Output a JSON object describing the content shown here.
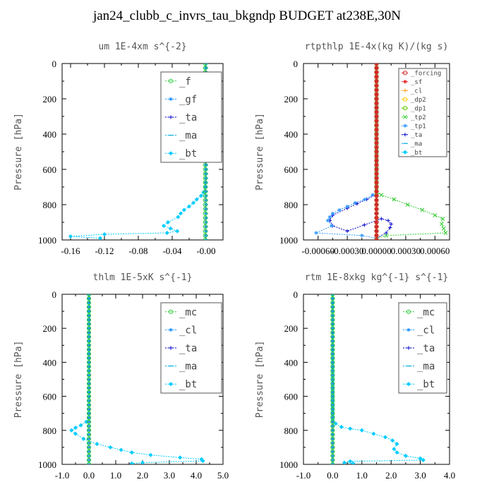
{
  "figure": {
    "title": "jan24_clubb_c_invrs_tau_bkgndp  BUDGET at238E,30N"
  },
  "chart_data": [
    {
      "type": "line",
      "title": "um  1E-4xm s^{-2}",
      "ylabel": "Pressure [hPa]",
      "xlim": [
        -0.17,
        0.02
      ],
      "ylim": [
        1000,
        0
      ],
      "y_inverted": true,
      "xticks": [
        "-0.16",
        "-0.12",
        "-0.08",
        "-0.04",
        "-0.00"
      ],
      "xtick_values": [
        -0.16,
        -0.12,
        -0.08,
        -0.04,
        0.0
      ],
      "yticks": [
        "0",
        "200",
        "400",
        "600",
        "800",
        "1000"
      ],
      "legend": "top-right",
      "legend_size": "big",
      "series": [
        {
          "name": "_f",
          "color": "#2ecc40",
          "marker": "circle",
          "x": [
            -0.001,
            -0.001
          ],
          "y": [
            0,
            1000
          ]
        },
        {
          "name": "_gf",
          "color": "#1e90ff",
          "marker": "star",
          "x": [
            0.0,
            0.0
          ],
          "y": [
            0,
            1000
          ]
        },
        {
          "name": "_ta",
          "color": "#0000cc",
          "marker": "plus",
          "x": [
            0.0,
            0.0
          ],
          "y": [
            0,
            1000
          ]
        },
        {
          "name": "_ma",
          "color": "#00aadd",
          "marker": "dash",
          "x": [
            0.0,
            0.0
          ],
          "y": [
            0,
            1000
          ]
        },
        {
          "name": "_bt",
          "color": "#00ccff",
          "marker": "diamond",
          "x": [
            -0.0,
            -0.0,
            -0.001,
            -0.003,
            -0.006,
            -0.011,
            -0.015,
            -0.02,
            -0.026,
            -0.03,
            -0.033,
            -0.045,
            -0.05,
            -0.042,
            -0.034,
            -0.046,
            -0.12,
            -0.16,
            -0.125
          ],
          "y": [
            0,
            650,
            700,
            730,
            750,
            770,
            790,
            810,
            830,
            850,
            870,
            900,
            920,
            935,
            950,
            960,
            968,
            980,
            990
          ]
        }
      ]
    },
    {
      "type": "line",
      "title": "rtpthlp  1E-4x(kg K)/(kg s)",
      "ylabel": "Pressure [hPa]",
      "xlim": [
        -0.00075,
        0.00075
      ],
      "ylim": [
        1000,
        0
      ],
      "y_inverted": true,
      "xticks": [
        "-0.00060",
        "-0.00030",
        "0.00000",
        "0.00030",
        "0.00060"
      ],
      "xtick_values": [
        -0.0006,
        -0.0003,
        0.0,
        0.0003,
        0.0006
      ],
      "yticks": [
        "0",
        "200",
        "400",
        "600",
        "800",
        "1000"
      ],
      "legend": "top-right",
      "legend_size": "small",
      "series": [
        {
          "name": "_forcing",
          "color": "#d62728",
          "marker": "circle",
          "x": [
            0.0,
            0.0
          ],
          "y": [
            0,
            1000
          ]
        },
        {
          "name": "_sf",
          "color": "#e41a1c",
          "marker": "star",
          "x": [
            0.0,
            0.0
          ],
          "y": [
            0,
            1000
          ]
        },
        {
          "name": "_cl",
          "color": "#ff9900",
          "marker": "plus",
          "x": [
            0.0,
            0.0
          ],
          "y": [
            0,
            1000
          ]
        },
        {
          "name": "_dp2",
          "color": "#ffcc00",
          "marker": "circle",
          "x": [
            0.0,
            0.0
          ],
          "y": [
            0,
            1000
          ]
        },
        {
          "name": "_dp1",
          "color": "#66cc00",
          "marker": "circle",
          "x": [
            0.0,
            0.0
          ],
          "y": [
            0,
            1000
          ]
        },
        {
          "name": "_tp2",
          "color": "#33cc33",
          "marker": "cross",
          "x": [
            0.0,
            0.0,
            5e-05,
            0.00018,
            0.00032,
            0.00047,
            0.0006,
            0.00068,
            0.00067,
            0.00071,
            0.0001,
            0.0
          ],
          "y": [
            0,
            730,
            745,
            770,
            800,
            830,
            860,
            880,
            910,
            960,
            975,
            990
          ]
        },
        {
          "name": "_tp1",
          "color": "#3399ff",
          "marker": "star",
          "x": [
            0.0,
            0.0,
            -4e-05,
            -0.00012,
            -0.00022,
            -0.0003,
            -0.00038,
            -0.00045,
            -0.00048,
            -0.0005,
            -0.00046,
            -0.00062,
            -0.00015,
            0.0
          ],
          "y": [
            0,
            720,
            745,
            770,
            790,
            810,
            830,
            850,
            870,
            890,
            920,
            960,
            975,
            990
          ]
        },
        {
          "name": "_ta",
          "color": "#0000cc",
          "marker": "plus",
          "x": [
            0.0,
            0.0,
            -0.0001,
            -0.0003,
            -0.00045,
            -0.00048,
            -0.00045,
            -0.0003,
            5e-05,
            0.00012,
            0.00015,
            0.00014,
            0.0001,
            0.0
          ],
          "y": [
            0,
            740,
            770,
            820,
            860,
            890,
            920,
            950,
            880,
            890,
            910,
            930,
            960,
            990
          ]
        },
        {
          "name": "_ma",
          "color": "#00aadd",
          "marker": "dash",
          "x": [
            0.0,
            0.0
          ],
          "y": [
            0,
            1000
          ]
        },
        {
          "name": "_bt",
          "color": "#00ccff",
          "marker": "diamond",
          "x": [
            0.0,
            0.0
          ],
          "y": [
            0,
            1000
          ]
        }
      ]
    },
    {
      "type": "line",
      "title": "thlm  1E-5xK s^{-1}",
      "ylabel": "Pressure [hPa]",
      "xlim": [
        -1.0,
        5.0
      ],
      "ylim": [
        1000,
        0
      ],
      "y_inverted": true,
      "xticks": [
        "-1.0",
        "0.0",
        "1.0",
        "2.0",
        "3.0",
        "4.0",
        "5.0"
      ],
      "xtick_values": [
        -1.0,
        0.0,
        1.0,
        2.0,
        3.0,
        4.0,
        5.0
      ],
      "yticks": [
        "0",
        "200",
        "400",
        "600",
        "800",
        "1000"
      ],
      "legend": "top-right",
      "legend_size": "big",
      "series": [
        {
          "name": "_mc",
          "color": "#2ecc40",
          "marker": "circle",
          "x": [
            0.0,
            0.0
          ],
          "y": [
            0,
            1000
          ]
        },
        {
          "name": "_cl",
          "color": "#1e90ff",
          "marker": "star",
          "x": [
            0.0,
            0.0
          ],
          "y": [
            0,
            1000
          ]
        },
        {
          "name": "_ta",
          "color": "#0000cc",
          "marker": "plus",
          "x": [
            0.0,
            0.0
          ],
          "y": [
            0,
            1000
          ]
        },
        {
          "name": "_ma",
          "color": "#00aadd",
          "marker": "dash",
          "x": [
            0.0,
            0.0
          ],
          "y": [
            0,
            1000
          ]
        },
        {
          "name": "_bt",
          "color": "#00ccff",
          "marker": "diamond",
          "x": [
            0.0,
            0.0,
            -0.1,
            -0.3,
            -0.5,
            -0.65,
            -0.5,
            -0.2,
            0.3,
            0.8,
            1.2,
            1.6,
            2.3,
            3.4,
            4.2,
            4.25,
            2.0,
            1.6
          ],
          "y": [
            0,
            730,
            750,
            770,
            785,
            800,
            820,
            850,
            880,
            900,
            915,
            930,
            945,
            960,
            970,
            980,
            990,
            995
          ]
        }
      ]
    },
    {
      "type": "line",
      "title": "rtm  1E-8xkg kg^{-1} s^{-1}",
      "ylabel": "Pressure [hPa]",
      "xlim": [
        -1.0,
        4.0
      ],
      "ylim": [
        1000,
        0
      ],
      "y_inverted": true,
      "xticks": [
        "-1.0",
        "0.0",
        "1.0",
        "2.0",
        "3.0",
        "4.0"
      ],
      "xtick_values": [
        -1.0,
        0.0,
        1.0,
        2.0,
        3.0,
        4.0
      ],
      "yticks": [
        "0",
        "200",
        "400",
        "600",
        "800",
        "1000"
      ],
      "legend": "top-right",
      "legend_size": "big",
      "series": [
        {
          "name": "_mc",
          "color": "#2ecc40",
          "marker": "circle",
          "x": [
            0.0,
            0.0
          ],
          "y": [
            0,
            1000
          ]
        },
        {
          "name": "_cl",
          "color": "#1e90ff",
          "marker": "star",
          "x": [
            0.0,
            0.0
          ],
          "y": [
            0,
            1000
          ]
        },
        {
          "name": "_ta",
          "color": "#0000cc",
          "marker": "plus",
          "x": [
            0.0,
            0.0
          ],
          "y": [
            0,
            1000
          ]
        },
        {
          "name": "_ma",
          "color": "#00aadd",
          "marker": "dash",
          "x": [
            0.0,
            0.0
          ],
          "y": [
            0,
            1000
          ]
        },
        {
          "name": "_bt",
          "color": "#00ccff",
          "marker": "diamond",
          "x": [
            0.0,
            0.0,
            0.1,
            0.3,
            0.6,
            1.0,
            1.4,
            1.8,
            2.05,
            2.2,
            2.1,
            2.2,
            2.5,
            3.0,
            3.1,
            0.6,
            0.4,
            0.7
          ],
          "y": [
            0,
            740,
            760,
            780,
            790,
            800,
            820,
            840,
            860,
            880,
            910,
            930,
            950,
            965,
            975,
            982,
            990,
            995
          ]
        }
      ]
    }
  ]
}
